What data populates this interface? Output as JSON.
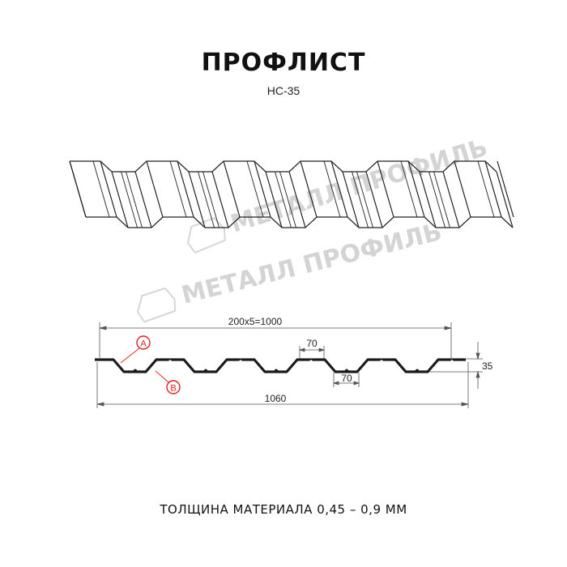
{
  "title": "ПРОФЛИСТ",
  "subtitle": "НС-35",
  "watermark": "МЕТАЛЛ ПРОФИЛЬ",
  "dimensions": {
    "pitch_total": "200x5=1000",
    "full_width": "1060",
    "height": "35",
    "top_flat": "70",
    "bottom_flat": "70"
  },
  "markers": {
    "a": "A",
    "b": "B"
  },
  "footer": "ТОЛЩИНА МАТЕРИАЛА 0,45 – 0,9 ММ",
  "colors": {
    "line": "#1a1a1a",
    "marker": "#e02020",
    "watermark": "#cfcfcf"
  }
}
